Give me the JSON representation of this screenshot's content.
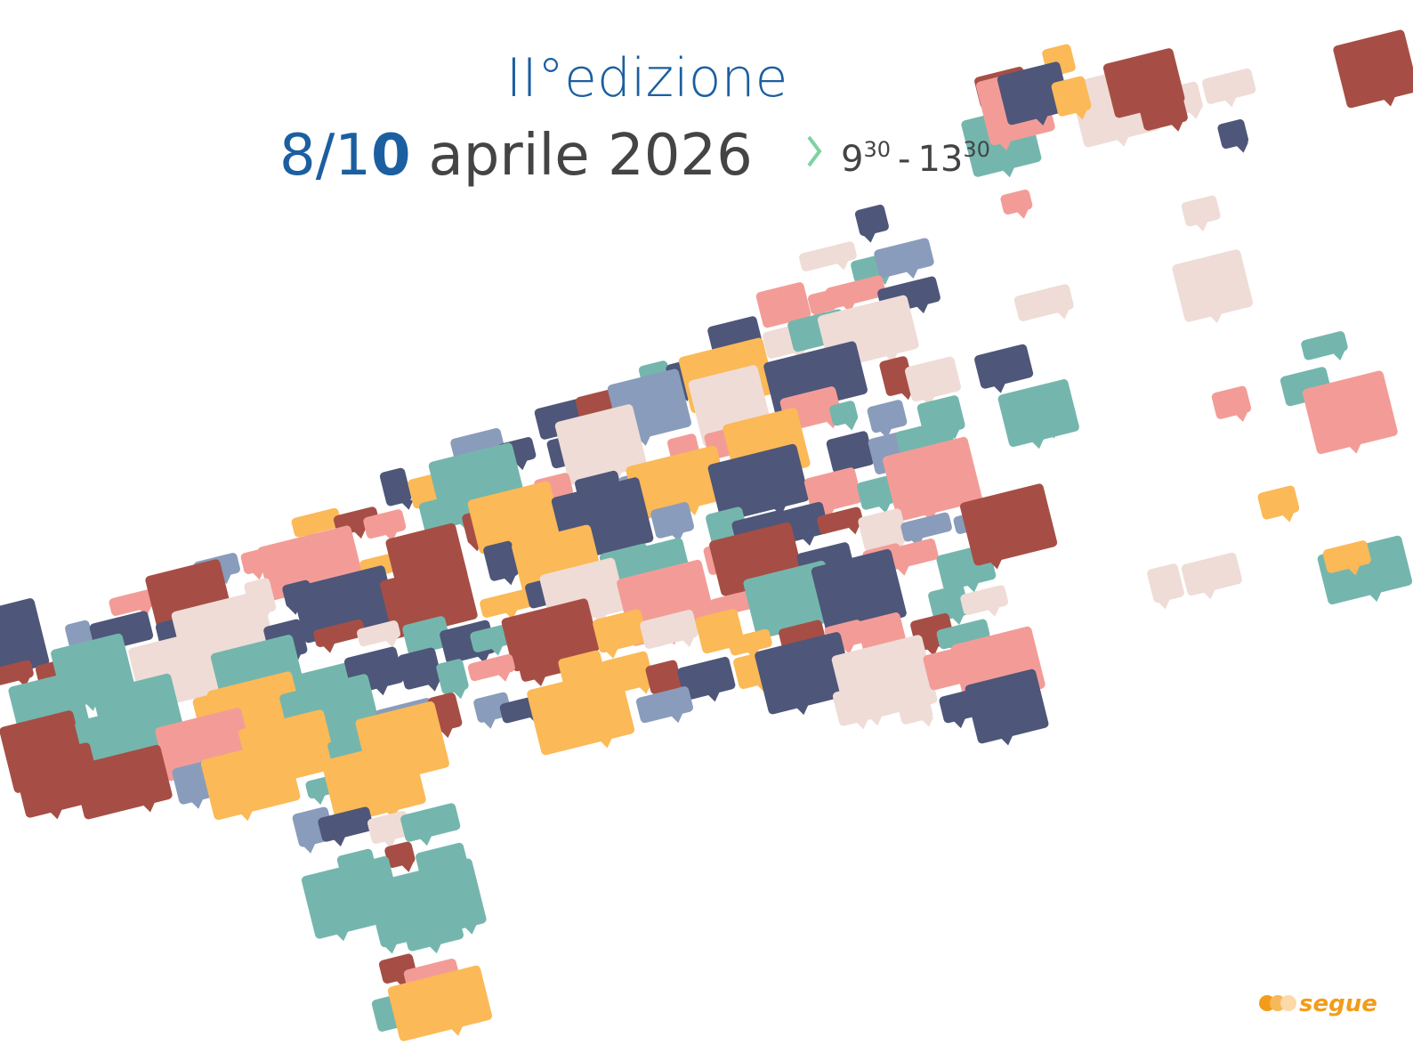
{
  "header": {
    "edition": "II°edizione",
    "date": {
      "start": "8/1",
      "bold": "0",
      "rest": "aprile 2026"
    },
    "time": {
      "start_hour": "9",
      "start_min": "30",
      "separator": "-",
      "end_hour": "13",
      "end_min": "30"
    }
  },
  "footer": {
    "logo": "segue"
  }
}
